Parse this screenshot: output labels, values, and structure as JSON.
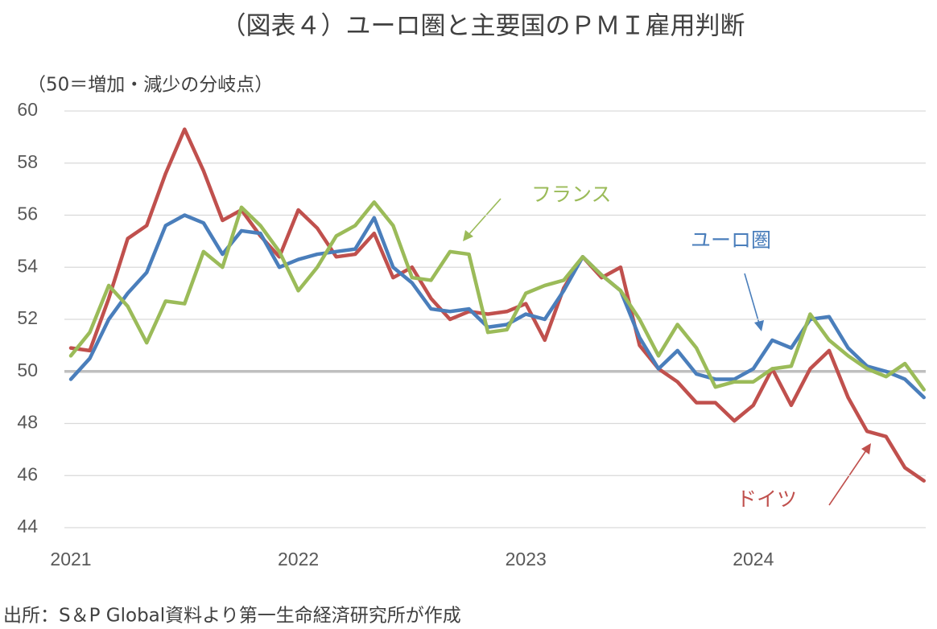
{
  "chart_data": {
    "type": "line",
    "title": "（図表４）ユーロ圏と主要国のＰＭＩ雇用判断",
    "y_label": "（50＝増加・減少の分岐点）",
    "source": "出所：S＆P Global資料より第一生命経済研究所が作成",
    "categories": [
      "2021",
      null,
      null,
      null,
      null,
      null,
      null,
      null,
      null,
      null,
      null,
      null,
      "2022",
      null,
      null,
      null,
      null,
      null,
      null,
      null,
      null,
      null,
      null,
      null,
      "2023",
      null,
      null,
      null,
      null,
      null,
      null,
      null,
      null,
      null,
      null,
      null,
      "2024",
      null,
      null,
      null,
      null,
      null,
      null,
      null,
      null,
      null
    ],
    "ylim": [
      44,
      60
    ],
    "yticks": [
      44,
      46,
      48,
      50,
      52,
      54,
      56,
      58,
      60
    ],
    "grid": true,
    "reference_line": 50,
    "reference_color": "#bfbfbf",
    "series": [
      {
        "name": "ユーロ圏",
        "color": "#4a7ebb",
        "label_pos": [
          858,
          300
        ],
        "values": [
          49.7,
          50.5,
          52.0,
          53.0,
          53.8,
          55.6,
          56.0,
          55.7,
          54.5,
          55.4,
          55.3,
          54.0,
          54.3,
          54.5,
          54.6,
          54.7,
          55.9,
          54.0,
          53.4,
          52.4,
          52.3,
          52.4,
          51.7,
          51.8,
          52.2,
          52.0,
          53.1,
          54.4,
          53.7,
          53.1,
          51.3,
          50.1,
          50.8,
          49.9,
          49.7,
          49.7,
          50.1,
          51.2,
          50.9,
          52.0,
          52.1,
          50.9,
          50.2,
          50.0,
          49.7,
          49.0
        ]
      },
      {
        "name": "ドイツ",
        "color": "#c0504d",
        "label_pos": [
          915,
          622
        ],
        "values": [
          50.9,
          50.8,
          52.8,
          55.1,
          55.6,
          57.6,
          59.3,
          57.7,
          55.8,
          56.2,
          55.2,
          54.4,
          56.2,
          55.5,
          54.4,
          54.5,
          55.3,
          53.6,
          54.0,
          52.8,
          52.0,
          52.3,
          52.2,
          52.3,
          52.6,
          51.2,
          53.2,
          54.4,
          53.6,
          54.0,
          51.0,
          50.1,
          49.6,
          48.8,
          48.8,
          48.1,
          48.7,
          50.1,
          48.7,
          50.1,
          50.8,
          49.0,
          47.7,
          47.5,
          46.3,
          45.8
        ]
      },
      {
        "name": "フランス",
        "color": "#9bbb59",
        "label_pos": [
          660,
          243
        ],
        "values": [
          50.6,
          51.5,
          53.3,
          52.5,
          51.1,
          52.7,
          52.6,
          54.6,
          54.0,
          56.3,
          55.6,
          54.6,
          53.1,
          54.0,
          55.2,
          55.6,
          56.5,
          55.6,
          53.6,
          53.5,
          54.6,
          54.5,
          51.5,
          51.6,
          53.0,
          53.3,
          53.5,
          54.4,
          53.7,
          53.1,
          52.0,
          50.6,
          51.8,
          50.9,
          49.4,
          49.6,
          49.6,
          50.1,
          50.2,
          52.2,
          51.2,
          50.6,
          50.1,
          49.8,
          50.3,
          49.3
        ]
      }
    ]
  }
}
